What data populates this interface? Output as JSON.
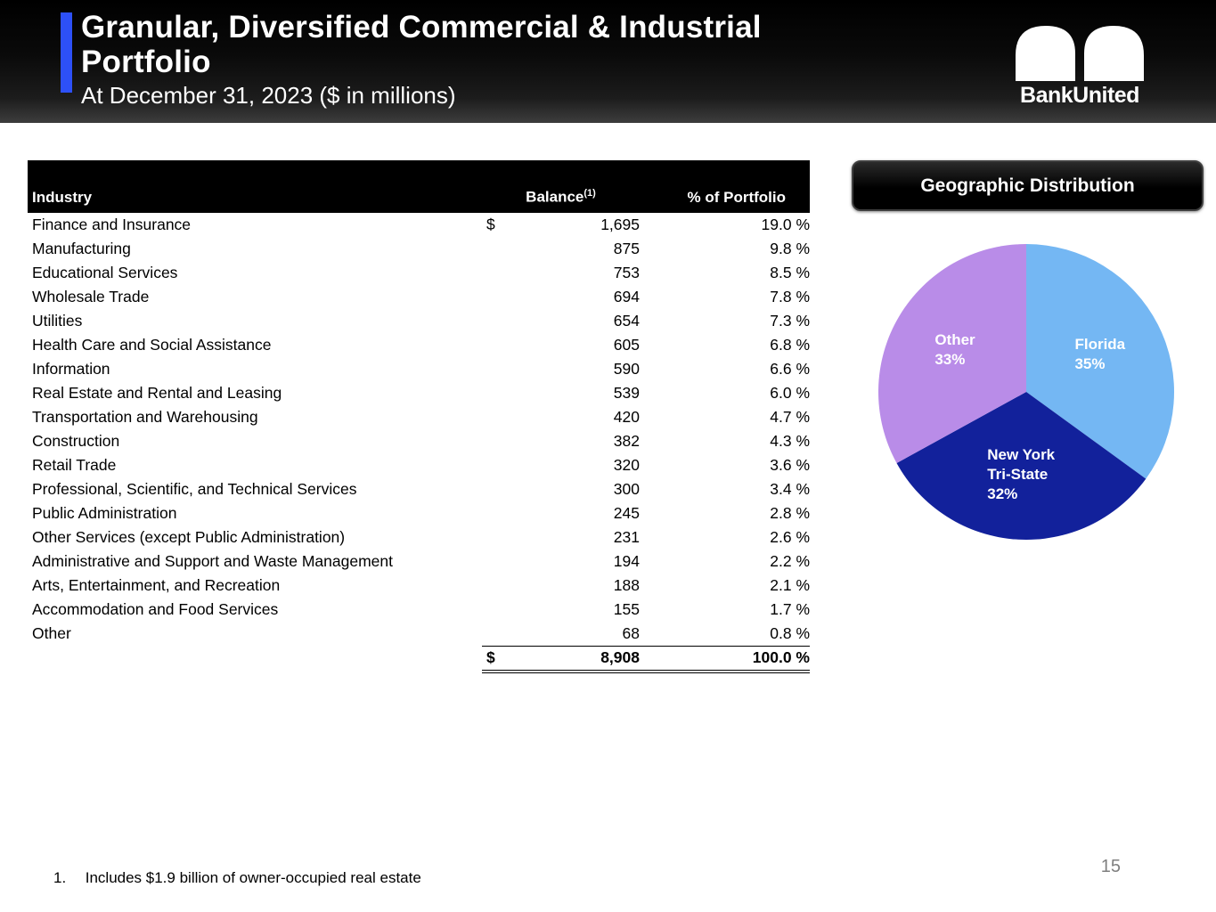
{
  "header": {
    "title": "Granular, Diversified Commercial & Industrial Portfolio",
    "subtitle": "At December 31, 2023 ($ in millions)",
    "accent_color": "#2d50f7",
    "logo": {
      "text": "BankUnited",
      "icon": "double-arch-icon"
    }
  },
  "table": {
    "columns": {
      "industry": "Industry",
      "balance": "Balance",
      "balance_footnote_marker": "(1)",
      "portfolio": "% of Portfolio"
    },
    "rows": [
      {
        "industry": "Finance and Insurance",
        "dollar_sign": "$",
        "balance": "1,695",
        "portfolio": "19.0 %"
      },
      {
        "industry": "Manufacturing",
        "balance": "875",
        "portfolio": "9.8 %"
      },
      {
        "industry": "Educational Services",
        "balance": "753",
        "portfolio": "8.5 %"
      },
      {
        "industry": "Wholesale Trade",
        "balance": "694",
        "portfolio": "7.8 %"
      },
      {
        "industry": "Utilities",
        "balance": "654",
        "portfolio": "7.3 %"
      },
      {
        "industry": "Health Care and Social Assistance",
        "balance": "605",
        "portfolio": "6.8 %"
      },
      {
        "industry": "Information",
        "balance": "590",
        "portfolio": "6.6 %"
      },
      {
        "industry": "Real Estate and Rental and Leasing",
        "balance": "539",
        "portfolio": "6.0 %"
      },
      {
        "industry": "Transportation and Warehousing",
        "balance": "420",
        "portfolio": "4.7 %"
      },
      {
        "industry": "Construction",
        "balance": "382",
        "portfolio": "4.3 %"
      },
      {
        "industry": "Retail Trade",
        "balance": "320",
        "portfolio": "3.6 %"
      },
      {
        "industry": "Professional, Scientific, and Technical Services",
        "balance": "300",
        "portfolio": "3.4 %"
      },
      {
        "industry": "Public Administration",
        "balance": "245",
        "portfolio": "2.8 %"
      },
      {
        "industry": "Other Services (except Public Administration)",
        "balance": "231",
        "portfolio": "2.6 %"
      },
      {
        "industry": "Administrative and Support and Waste Management",
        "balance": "194",
        "portfolio": "2.2 %"
      },
      {
        "industry": "Arts, Entertainment, and Recreation",
        "balance": "188",
        "portfolio": "2.1 %"
      },
      {
        "industry": "Accommodation and Food Services",
        "balance": "155",
        "portfolio": "1.7 %"
      },
      {
        "industry": "Other",
        "balance": "68",
        "portfolio": "0.8 %"
      }
    ],
    "total_row": {
      "dollar_sign": "$",
      "balance": "8,908",
      "portfolio": "100.0 %"
    }
  },
  "geo": {
    "title": "Geographic Distribution"
  },
  "chart_data": {
    "type": "pie",
    "title": "Geographic Distribution",
    "start_angle_deg": 0,
    "direction": "clockwise",
    "legend_position": "none",
    "slices": [
      {
        "id": "florida",
        "label": "Florida",
        "label_lines": [
          "Florida",
          "35%"
        ],
        "value": 35,
        "color": "#74B7F3"
      },
      {
        "id": "new-york-tri-state",
        "label": "New York Tri-State",
        "label_lines": [
          "New York",
          "Tri-State",
          "32%"
        ],
        "value": 32,
        "color": "#12219B"
      },
      {
        "id": "other",
        "label": "Other",
        "label_lines": [
          "Other",
          "33%"
        ],
        "value": 33,
        "color": "#B98CE8"
      }
    ]
  },
  "footnote": {
    "marker": "1.",
    "text": "Includes $1.9 billion of owner-occupied real estate"
  },
  "page_number": "15"
}
